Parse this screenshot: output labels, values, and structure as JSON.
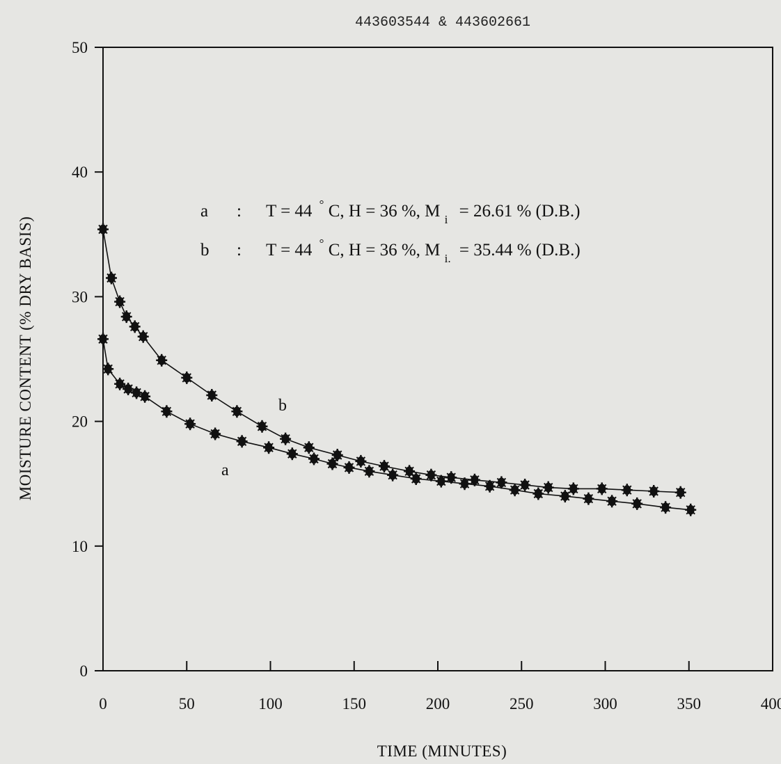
{
  "header": {
    "doc_id": "443603544 & 443602661"
  },
  "legend": {
    "a": {
      "key": "a",
      "sep": ":",
      "pre": "T = 44",
      "deg": "°",
      "mid": "C, H = 36 %, M",
      "sub": "i",
      "post": "= 26.61 % (D.B.)"
    },
    "b": {
      "key": "b",
      "sep": ":",
      "pre": "T = 44",
      "deg": "°",
      "mid": "C, H = 36 %, M",
      "sub": "i.",
      "post": "= 35.44 % (D.B.)"
    }
  },
  "colors": {
    "ink": "#111111",
    "paper": "#e6e6e3"
  },
  "chart_data": {
    "type": "line",
    "xlabel": "TIME (MINUTES)",
    "ylabel": "MOISTURE CONTENT (% DRY BASIS)",
    "xlim": [
      0,
      400
    ],
    "ylim": [
      0,
      50
    ],
    "xticks": [
      0,
      50,
      100,
      150,
      200,
      250,
      300,
      350,
      400
    ],
    "yticks": [
      0,
      10,
      20,
      30,
      40,
      50
    ],
    "grid": false,
    "marker": "asterisk",
    "series": [
      {
        "name": "a",
        "x": [
          0,
          3,
          10,
          15,
          20,
          25,
          38,
          52,
          67,
          83,
          99,
          113,
          126,
          137,
          147,
          159,
          173,
          187,
          202,
          216,
          231,
          246,
          260,
          276,
          290,
          304,
          319,
          336,
          351
        ],
        "y": [
          26.6,
          24.2,
          23.0,
          22.6,
          22.3,
          22.0,
          20.8,
          19.8,
          19.0,
          18.4,
          17.9,
          17.4,
          17.0,
          16.6,
          16.3,
          16.0,
          15.7,
          15.4,
          15.2,
          15.0,
          14.8,
          14.5,
          14.2,
          14.0,
          13.8,
          13.6,
          13.4,
          13.1,
          12.9
        ]
      },
      {
        "name": "b",
        "x": [
          0,
          5,
          10,
          14,
          19,
          24,
          35,
          50,
          65,
          80,
          95,
          109,
          123,
          140,
          154,
          168,
          183,
          196,
          208,
          222,
          238,
          252,
          266,
          281,
          298,
          313,
          329,
          345
        ],
        "y": [
          35.4,
          31.5,
          29.6,
          28.4,
          27.6,
          26.8,
          24.9,
          23.5,
          22.1,
          20.8,
          19.6,
          18.6,
          17.9,
          17.3,
          16.8,
          16.4,
          16.0,
          15.7,
          15.5,
          15.3,
          15.1,
          14.9,
          14.7,
          14.6,
          14.6,
          14.5,
          14.4,
          14.3
        ]
      }
    ]
  }
}
